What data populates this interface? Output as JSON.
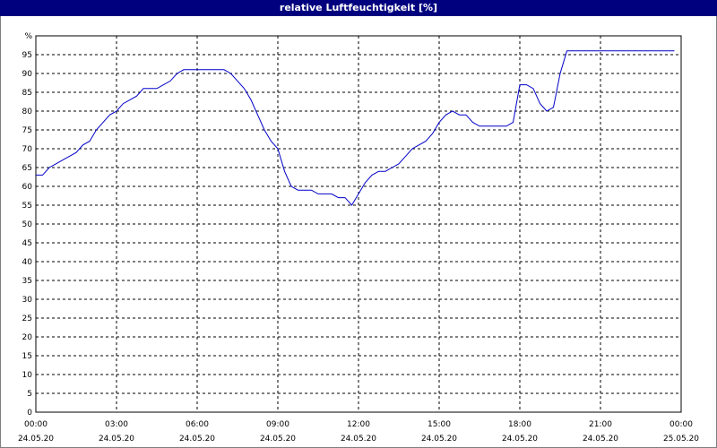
{
  "window": {
    "title": "relative Luftfeuchtigkeit [%]"
  },
  "chart_data": {
    "type": "line",
    "title": "relative Luftfeuchtigkeit [%]",
    "ylabel": "%",
    "ylim": [
      0,
      100
    ],
    "y_ticks": [
      0,
      5,
      10,
      15,
      20,
      25,
      30,
      35,
      40,
      45,
      50,
      55,
      60,
      65,
      70,
      75,
      80,
      85,
      90,
      95
    ],
    "xlim": [
      "24.05.20 00:00",
      "25.05.20 00:00"
    ],
    "x_ticks": [
      {
        "time": "00:00",
        "date": "24.05.20"
      },
      {
        "time": "03:00",
        "date": "24.05.20"
      },
      {
        "time": "06:00",
        "date": "24.05.20"
      },
      {
        "time": "09:00",
        "date": "24.05.20"
      },
      {
        "time": "12:00",
        "date": "24.05.20"
      },
      {
        "time": "15:00",
        "date": "24.05.20"
      },
      {
        "time": "18:00",
        "date": "24.05.20"
      },
      {
        "time": "21:00",
        "date": "24.05.20"
      },
      {
        "time": "00:00",
        "date": "25.05.20"
      }
    ],
    "grid": true,
    "line_color": "#0000c8",
    "series": [
      {
        "x": [
          "00:00",
          "00:15",
          "00:30",
          "00:45",
          "01:00",
          "01:15",
          "01:30",
          "01:45",
          "02:00",
          "02:15",
          "02:30",
          "02:45",
          "03:00",
          "03:15",
          "03:30",
          "03:45",
          "04:00",
          "04:15",
          "04:30",
          "04:45",
          "05:00",
          "05:15",
          "05:30",
          "05:45",
          "06:00",
          "06:15",
          "06:30",
          "06:45",
          "07:00",
          "07:15",
          "07:30",
          "07:45",
          "08:00",
          "08:15",
          "08:30",
          "08:45",
          "09:00",
          "09:15",
          "09:30",
          "09:45",
          "10:00",
          "10:15",
          "10:30",
          "10:45",
          "11:00",
          "11:15",
          "11:30",
          "11:45",
          "12:00",
          "12:15",
          "12:30",
          "12:45",
          "13:00",
          "13:15",
          "13:30",
          "13:45",
          "14:00",
          "14:15",
          "14:30",
          "14:45",
          "15:00",
          "15:15",
          "15:30",
          "15:45",
          "16:00",
          "16:15",
          "16:30",
          "16:45",
          "17:00",
          "17:15",
          "17:30",
          "17:45",
          "18:00",
          "18:15",
          "18:30",
          "18:45",
          "19:00",
          "19:15",
          "19:30",
          "19:45",
          "20:00",
          "20:15",
          "20:30",
          "21:00",
          "22:00",
          "23:00",
          "23:45"
        ],
        "values": [
          63,
          63,
          65,
          66,
          67,
          68,
          69,
          71,
          72,
          75,
          77,
          79,
          80,
          82,
          83,
          84,
          86,
          86,
          86,
          87,
          88,
          90,
          91,
          91,
          91,
          91,
          91,
          91,
          91,
          90,
          88,
          86,
          83,
          79,
          75,
          72,
          70,
          64,
          60,
          59,
          59,
          59,
          58,
          58,
          58,
          57,
          57,
          55,
          58,
          61,
          63,
          64,
          64,
          65,
          66,
          68,
          70,
          71,
          72,
          74,
          77,
          79,
          80,
          79,
          79,
          77,
          76,
          76,
          76,
          76,
          76,
          77,
          87,
          87,
          86,
          82,
          80,
          81,
          90,
          96,
          96,
          96,
          96,
          96,
          96,
          96,
          96
        ]
      }
    ]
  }
}
